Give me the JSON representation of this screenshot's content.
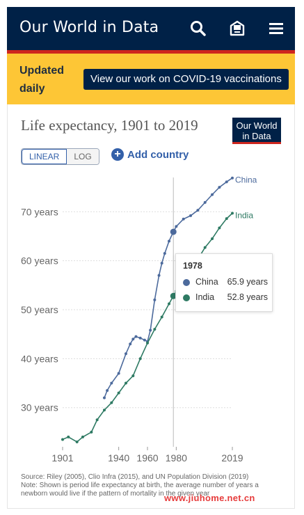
{
  "header": {
    "logo": "Our World in Data",
    "icons": [
      "search-icon",
      "newsletter-icon",
      "menu-icon"
    ],
    "colors": {
      "navy": "#002147",
      "red": "#ce261e"
    }
  },
  "banner": {
    "status": "Updated daily",
    "cta_label": "View our work on COVID-19 vaccinations",
    "color": "#fdc636"
  },
  "chart_card": {
    "badge": "Our World in Data",
    "scale_toggle": {
      "linear": "LINEAR",
      "log": "LOG",
      "selected": "LINEAR"
    },
    "add_country": "Add country"
  },
  "chart_data": {
    "type": "line",
    "title": "Life expectancy, 1901 to 2019",
    "xlabel": "",
    "ylabel": "",
    "xlim": [
      1901,
      2019
    ],
    "ylim": [
      22,
      77
    ],
    "yticks": [
      30,
      40,
      50,
      60,
      70
    ],
    "ytick_labels": [
      "30 years",
      "40 years",
      "50 years",
      "60 years",
      "70 years"
    ],
    "xticks": [
      1901,
      1940,
      1960,
      1980,
      2019
    ],
    "grid": true,
    "highlight_year": 1978,
    "series": [
      {
        "name": "China",
        "color": "#4c6a9c",
        "x": [
          1930,
          1932,
          1935,
          1940,
          1945,
          1948,
          1950,
          1952,
          1955,
          1958,
          1960,
          1962,
          1965,
          1968,
          1970,
          1972,
          1975,
          1978,
          1980,
          1985,
          1990,
          1995,
          2000,
          2005,
          2010,
          2015,
          2019
        ],
        "y": [
          32,
          33.5,
          35,
          37,
          41,
          43,
          44,
          44.5,
          44.2,
          43.8,
          43.5,
          45.8,
          52,
          57,
          59.5,
          61.5,
          64,
          65.9,
          67,
          68.5,
          69.2,
          70.3,
          71.9,
          73.5,
          75,
          76.1,
          76.9
        ]
      },
      {
        "name": "India",
        "color": "#2e7a63",
        "x": [
          1901,
          1905,
          1911,
          1915,
          1921,
          1925,
          1930,
          1935,
          1940,
          1945,
          1950,
          1955,
          1960,
          1965,
          1970,
          1975,
          1978,
          1980,
          1985,
          1990,
          1995,
          2000,
          2005,
          2010,
          2015,
          2019
        ],
        "y": [
          23.5,
          24,
          23,
          24,
          25,
          27.5,
          29.5,
          31,
          33,
          35,
          36.5,
          40,
          43.2,
          46,
          48.5,
          51.2,
          52.8,
          53.8,
          56,
          58,
          60.3,
          62.7,
          64.5,
          66.7,
          68.6,
          69.7
        ]
      }
    ]
  },
  "tooltip": {
    "year": "1978",
    "rows": [
      {
        "name": "China",
        "value": "65.9 years",
        "color": "#4c6a9c"
      },
      {
        "name": "India",
        "value": "52.8 years",
        "color": "#2e7a63"
      }
    ]
  },
  "source": {
    "line1": "Source: Riley (2005), Clio Infra (2015), and UN Population Division (2019)",
    "line2": "Note: Shown is period life expectancy at birth, the average number of years a newborn would live if the pattern of mortality in the given year"
  },
  "watermark": "www.jiuhome.net.cn"
}
